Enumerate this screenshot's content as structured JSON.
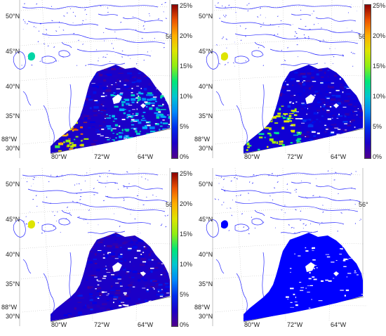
{
  "panels": [
    {
      "id": "top-left",
      "has_colorbar": true
    },
    {
      "id": "top-right",
      "has_colorbar": true
    },
    {
      "id": "bottom-left",
      "has_colorbar": true
    },
    {
      "id": "bottom-right",
      "has_colorbar": false
    }
  ],
  "lat_labels": [
    "50°N",
    "45°N",
    "40°N",
    "35°N",
    "30°N"
  ],
  "lon_labels": [
    "80°W",
    "72°W",
    "64°W"
  ],
  "edge_lon_label": "88°W",
  "edge_right_label": "56°",
  "colorbar_ticks": [
    "25%",
    "20%",
    "15%",
    "10%",
    "5%",
    "0%"
  ],
  "colorbar_range_percent": [
    0,
    25
  ],
  "colors": {
    "coast": "#2828ff",
    "grid": "#bbbbbb",
    "uniform_blue": "#0000ff"
  }
}
